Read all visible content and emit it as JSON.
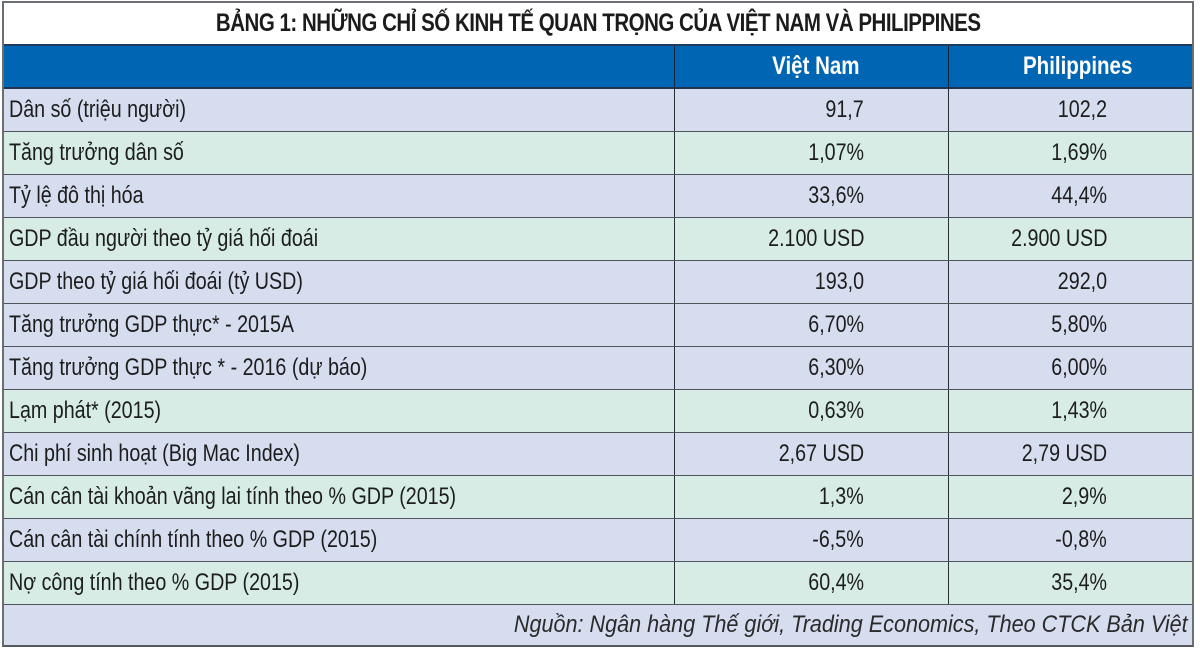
{
  "table": {
    "title": "BẢNG 1: NHỮNG CHỈ SỐ KINH TẾ QUAN TRỌNG CỦA VIỆT NAM VÀ PHILIPPINES",
    "columns": [
      "",
      "Việt Nam",
      "Philippines"
    ],
    "rows": [
      {
        "label": "Dân số (triệu người)",
        "vietnam": "91,7",
        "philippines": "102,2",
        "bg": "lav"
      },
      {
        "label": "Tăng trưởng dân số",
        "vietnam": "1,07%",
        "philippines": "1,69%",
        "bg": "grn"
      },
      {
        "label": "Tỷ lệ đô thị hóa",
        "vietnam": "33,6%",
        "philippines": "44,4%",
        "bg": "lav"
      },
      {
        "label": "GDP đầu người theo tỷ giá hối đoái",
        "vietnam": "2.100 USD",
        "philippines": "2.900 USD",
        "bg": "grn"
      },
      {
        "label": "GDP theo tỷ giá hối đoái (tỷ USD)",
        "vietnam": "193,0",
        "philippines": "292,0",
        "bg": "lav"
      },
      {
        "label": "Tăng trưởng GDP thực* - 2015A",
        "vietnam": "6,70%",
        "philippines": "5,80%",
        "bg": "lav"
      },
      {
        "label": "Tăng trưởng GDP thực * - 2016 (dự báo)",
        "vietnam": "6,30%",
        "philippines": "6,00%",
        "bg": "lav"
      },
      {
        "label": "Lạm phát* (2015)",
        "vietnam": "0,63%",
        "philippines": "1,43%",
        "bg": "grn"
      },
      {
        "label": "Chi phí sinh hoạt (Big Mac Index)",
        "vietnam": "2,67 USD",
        "philippines": "2,79 USD",
        "bg": "lav"
      },
      {
        "label": "Cán cân tài khoản vãng lai tính theo % GDP (2015)",
        "vietnam": "1,3%",
        "philippines": "2,9%",
        "bg": "grn"
      },
      {
        "label": "Cán cân tài chính tính theo % GDP (2015)",
        "vietnam": "-6,5%",
        "philippines": "-0,8%",
        "bg": "lav"
      },
      {
        "label": "Nợ công tính theo % GDP (2015)",
        "vietnam": "60,4%",
        "philippines": "35,4%",
        "bg": "grn"
      }
    ],
    "source": "Nguồn: Ngân hàng Thế giới, Trading Economics, Theo CTCK Bản Việt"
  },
  "colors": {
    "header_blue": "#0066B3",
    "row_lavender": "#D5DDEF",
    "row_green": "#D6ECE4",
    "title_bg": "#FFFFFF",
    "border": "#4F555B"
  }
}
